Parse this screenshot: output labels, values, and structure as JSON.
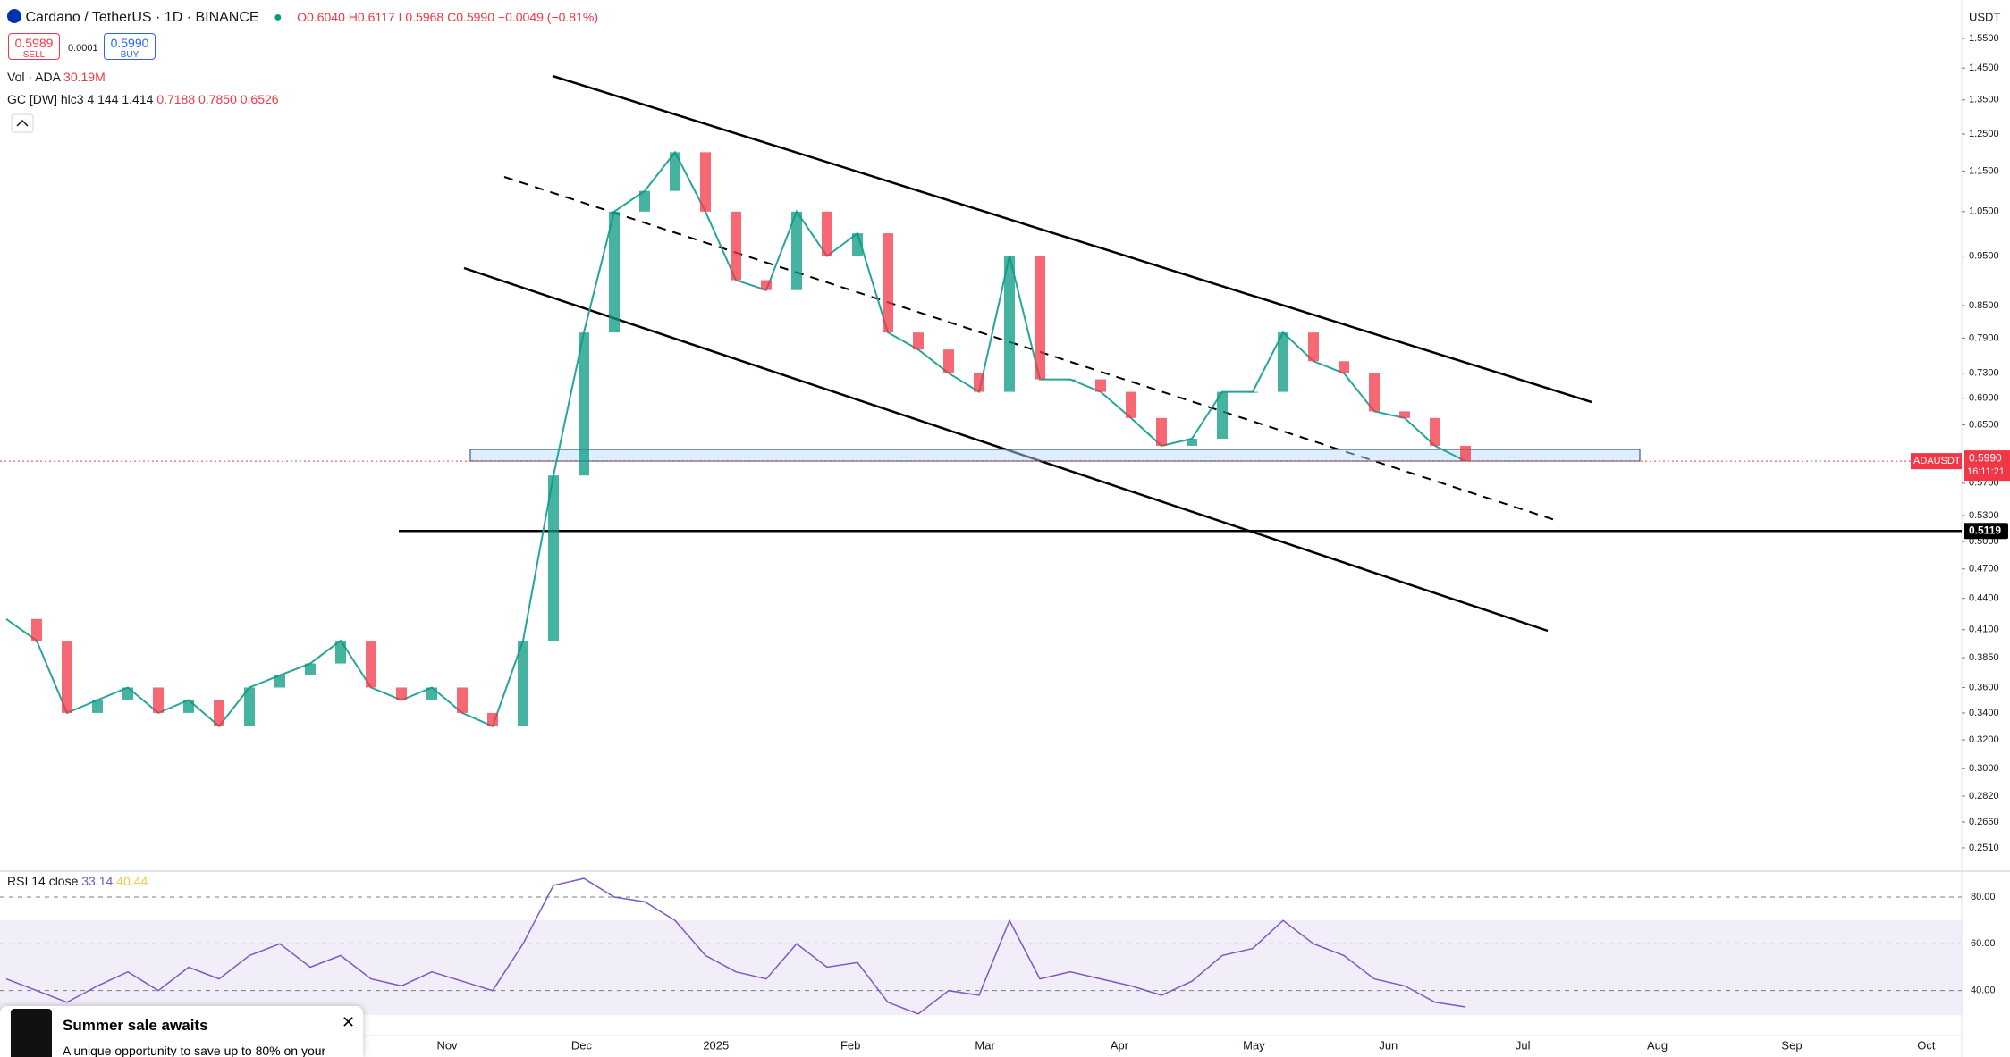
{
  "header": {
    "symbol": "Cardano / TetherUS · 1D · BINANCE",
    "open": "O0.6040",
    "high": "H0.6117",
    "low": "L0.5968",
    "close": "C0.5990",
    "change": "−0.0049 (−0.81%)",
    "sell_price": "0.5989",
    "sell": "SELL",
    "spread": "0.0001",
    "buy_price": "0.5990",
    "buy": "BUY",
    "vol_label": "Vol · ADA",
    "vol_value": "30.19M",
    "gc_label": "GC [DW] hlc3 4 144 1.414",
    "gc_1": "0.7188",
    "gc_2": "0.7850",
    "gc_3": "0.6526"
  },
  "price_axis": {
    "currency": "USDT",
    "ticks": [
      {
        "value": 1.55,
        "label": "1.5500"
      },
      {
        "value": 1.45,
        "label": "1.4500"
      },
      {
        "value": 1.35,
        "label": "1.3500"
      },
      {
        "value": 1.25,
        "label": "1.2500"
      },
      {
        "value": 1.15,
        "label": "1.1500"
      },
      {
        "value": 1.05,
        "label": "1.0500"
      },
      {
        "value": 0.95,
        "label": "0.9500"
      },
      {
        "value": 0.85,
        "label": "0.8500"
      },
      {
        "value": 0.79,
        "label": "0.7900"
      },
      {
        "value": 0.73,
        "label": "0.7300"
      },
      {
        "value": 0.69,
        "label": "0.6900"
      },
      {
        "value": 0.65,
        "label": "0.6500"
      },
      {
        "value": 0.57,
        "label": "0.5700"
      },
      {
        "value": 0.53,
        "label": "0.5300"
      },
      {
        "value": 0.5,
        "label": "0.5000"
      },
      {
        "value": 0.47,
        "label": "0.4700"
      },
      {
        "value": 0.44,
        "label": "0.4400"
      },
      {
        "value": 0.41,
        "label": "0.4100"
      },
      {
        "value": 0.385,
        "label": "0.3850"
      },
      {
        "value": 0.36,
        "label": "0.3600"
      },
      {
        "value": 0.34,
        "label": "0.3400"
      },
      {
        "value": 0.32,
        "label": "0.3200"
      },
      {
        "value": 0.3,
        "label": "0.3000"
      },
      {
        "value": 0.282,
        "label": "0.2820"
      },
      {
        "value": 0.266,
        "label": "0.2660"
      },
      {
        "value": 0.251,
        "label": "0.2510"
      }
    ],
    "last": {
      "value": 0.599,
      "label": "0.5990",
      "symbol": "ADAUSDT",
      "countdown": "16:11:21"
    },
    "level": {
      "value": 0.5119,
      "label": "0.5119"
    }
  },
  "weekly_closes": [
    0.42,
    0.4,
    0.34,
    0.35,
    0.36,
    0.34,
    0.35,
    0.33,
    0.36,
    0.37,
    0.38,
    0.4,
    0.36,
    0.35,
    0.36,
    0.34,
    0.33,
    0.4,
    0.58,
    0.8,
    1.05,
    1.1,
    1.2,
    1.05,
    0.9,
    0.88,
    1.05,
    0.95,
    1.0,
    0.8,
    0.77,
    0.73,
    0.7,
    0.95,
    0.72,
    0.72,
    0.7,
    0.66,
    0.62,
    0.63,
    0.7,
    0.7,
    0.8,
    0.75,
    0.73,
    0.67,
    0.66,
    0.62,
    0.599
  ],
  "time_axis": [
    "Nov",
    "Dec",
    "2025",
    "Feb",
    "Mar",
    "Apr",
    "May",
    "Jun",
    "Jul",
    "Aug",
    "Sep",
    "Oct"
  ],
  "rsi": {
    "label": "RSI 14 close",
    "value_1": "33.14",
    "value_2": "40.44",
    "ticks": [
      {
        "value": 80,
        "label": "80.00"
      },
      {
        "value": 60,
        "label": "60.00"
      },
      {
        "value": 40,
        "label": "40.00"
      }
    ],
    "values": [
      45,
      40,
      35,
      42,
      48,
      40,
      50,
      45,
      55,
      60,
      50,
      55,
      45,
      42,
      48,
      44,
      40,
      60,
      85,
      88,
      80,
      78,
      70,
      55,
      48,
      45,
      60,
      50,
      52,
      35,
      30,
      40,
      38,
      70,
      45,
      48,
      45,
      42,
      38,
      44,
      55,
      58,
      70,
      60,
      55,
      45,
      42,
      35,
      33
    ]
  },
  "popup": {
    "title": "Summer sale awaits",
    "text": "A unique opportunity to save up to 80% on your"
  }
}
